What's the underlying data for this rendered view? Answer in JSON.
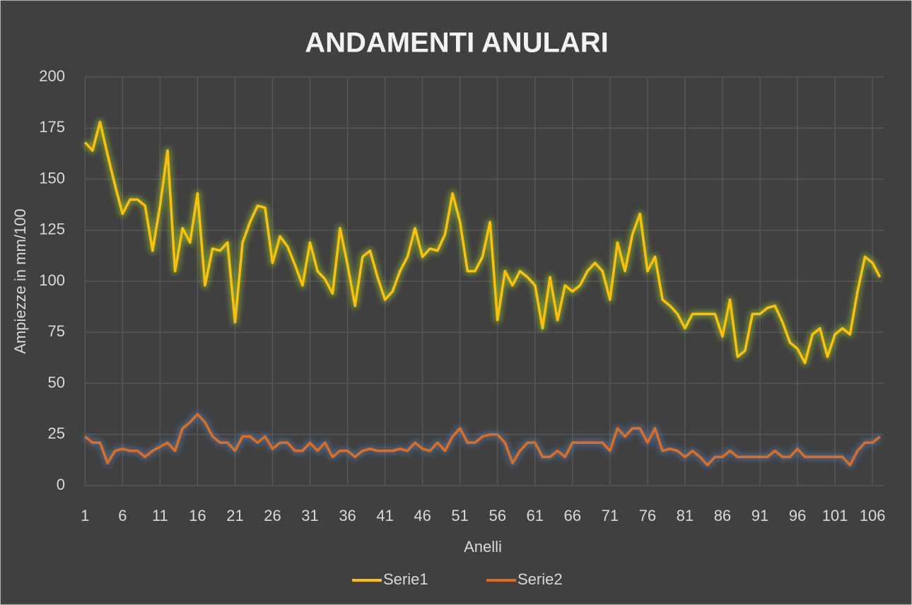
{
  "chart_data": {
    "type": "line",
    "title": "ANDAMENTI ANULARI",
    "xlabel": "Anelli",
    "ylabel": "Ampiezze in mm/100",
    "categories": [
      1,
      null,
      null,
      null,
      null,
      6,
      null,
      null,
      null,
      null,
      11,
      null,
      null,
      null,
      null,
      16,
      null,
      null,
      null,
      null,
      21,
      null,
      null,
      null,
      null,
      26,
      null,
      null,
      null,
      null,
      31,
      null,
      null,
      null,
      null,
      36,
      null,
      null,
      null,
      null,
      41,
      null,
      null,
      null,
      null,
      46,
      null,
      null,
      null,
      null,
      51,
      null,
      null,
      null,
      null,
      56,
      null,
      null,
      null,
      null,
      61,
      null,
      null,
      null,
      null,
      66,
      null,
      null,
      null,
      null,
      71,
      null,
      null,
      null,
      null,
      76,
      null,
      null,
      null,
      null,
      81,
      null,
      null,
      null,
      null,
      86,
      null,
      null,
      null,
      null,
      91,
      null,
      null,
      null,
      null,
      96,
      null,
      null,
      null,
      null,
      101,
      null,
      null,
      null,
      null,
      106,
      null
    ],
    "series": [
      {
        "name": "Serie1",
        "color": "#ffc000",
        "glow": "#9acd32",
        "values": [
          168,
          164,
          178,
          162,
          147,
          133,
          140,
          140,
          137,
          115,
          137,
          164,
          105,
          126,
          119,
          143,
          98,
          116,
          115,
          119,
          80,
          119,
          129,
          137,
          136,
          109,
          122,
          117,
          108,
          98,
          119,
          105,
          101,
          94,
          126,
          108,
          88,
          112,
          115,
          102,
          91,
          95,
          105,
          112,
          126,
          112,
          116,
          115,
          123,
          143,
          129,
          105,
          105,
          112,
          129,
          81,
          105,
          98,
          105,
          102,
          98,
          77,
          102,
          81,
          98,
          95,
          98,
          105,
          109,
          105,
          91,
          119,
          105,
          123,
          133,
          105,
          112,
          91,
          88,
          84,
          77,
          84,
          84,
          84,
          84,
          73,
          91,
          63,
          66,
          84,
          84,
          87,
          88,
          80,
          70,
          67,
          60,
          74,
          77,
          63,
          74,
          77,
          74,
          95,
          112,
          109,
          102
        ]
      },
      {
        "name": "Serie2",
        "color": "#e36c1c",
        "glow": "#4f81bd",
        "values": [
          24,
          21,
          21,
          11,
          17,
          18,
          17,
          17,
          14,
          17,
          19,
          21,
          17,
          28,
          31,
          35,
          31,
          24,
          21,
          21,
          17,
          24,
          24,
          21,
          24,
          18,
          21,
          21,
          17,
          17,
          21,
          17,
          21,
          14,
          17,
          17,
          14,
          17,
          18,
          17,
          17,
          17,
          18,
          17,
          21,
          18,
          17,
          21,
          17,
          24,
          28,
          21,
          21,
          24,
          25,
          25,
          21,
          11,
          17,
          21,
          21,
          14,
          14,
          17,
          14,
          21,
          21,
          21,
          21,
          21,
          17,
          28,
          24,
          28,
          28,
          21,
          28,
          17,
          18,
          17,
          14,
          17,
          14,
          10,
          14,
          14,
          17,
          14,
          14,
          14,
          14,
          14,
          17,
          14,
          14,
          18,
          14,
          14,
          14,
          14,
          14,
          14,
          10,
          17,
          21,
          21,
          24
        ]
      }
    ],
    "ylim": [
      0,
      200
    ],
    "yticks": [
      0,
      25,
      50,
      75,
      100,
      125,
      150,
      175,
      200
    ],
    "grid": true,
    "legend": "bottom"
  }
}
